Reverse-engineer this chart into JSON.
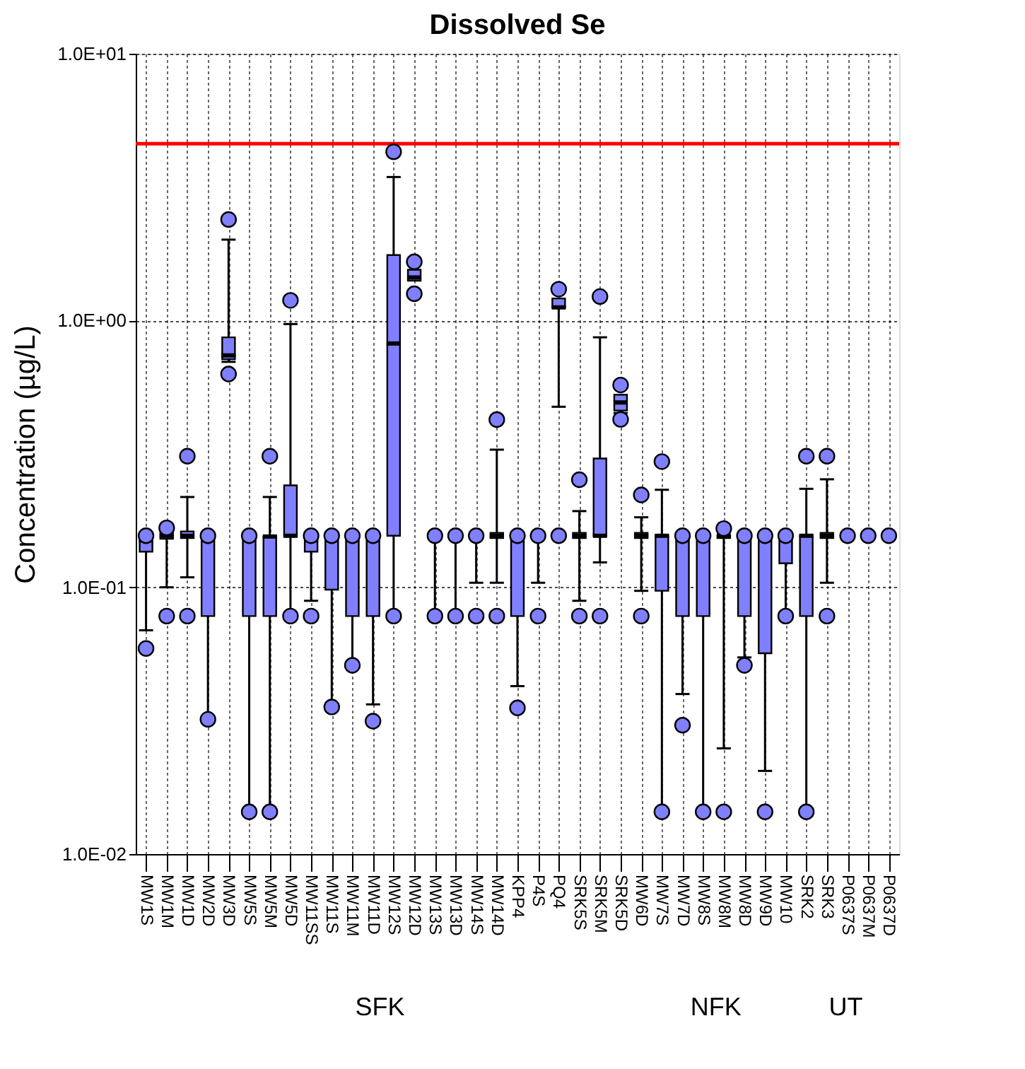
{
  "chart_data": {
    "type": "box",
    "title": "Dissolved Se",
    "ylabel": "Concentration (µg/L)",
    "categories": [
      "MW1S",
      "MW1M",
      "MW1D",
      "MW2D",
      "MW3D",
      "MW5S",
      "MW5M",
      "MW5D",
      "MW11SS",
      "MW11S",
      "MW11M",
      "MW11D",
      "MW12S",
      "MW12D",
      "MW13S",
      "MW13D",
      "MW14S",
      "MW14D",
      "KPP4",
      "P4S",
      "PQ4",
      "SRK5S",
      "SRK5M",
      "SRK5D",
      "MW6D",
      "MW7S",
      "MW7D",
      "MW8S",
      "MW8M",
      "MW8D",
      "MW9D",
      "MW10",
      "SRK2",
      "SRK3",
      "P0637S",
      "P0637M",
      "P0637D"
    ],
    "series": [
      {
        "color": "#8080ff",
        "boxes": [
          {
            "low": 0.069,
            "q1": 0.136,
            "median": 0.15,
            "q3": 0.156,
            "high": 0.156,
            "outliers": [
              0.156,
              0.059
            ]
          },
          {
            "low": 0.1,
            "q1": 0.152,
            "median": 0.156,
            "q3": 0.16,
            "high": 0.16,
            "outliers": [
              0.167,
              0.078
            ]
          },
          {
            "low": 0.109,
            "q1": 0.153,
            "median": 0.156,
            "q3": 0.162,
            "high": 0.218,
            "outliers": [
              0.31,
              0.078
            ]
          },
          {
            "low": 0.032,
            "q1": 0.078,
            "median": 0.156,
            "q3": 0.156,
            "high": 0.156,
            "outliers": [
              0.156,
              0.032
            ]
          },
          {
            "low": 0.7,
            "q1": 0.716,
            "median": 0.74,
            "q3": 0.865,
            "high": 2.01,
            "outliers": [
              2.39,
              0.63
            ]
          },
          {
            "low": 0.0144,
            "q1": 0.078,
            "median": 0.156,
            "q3": 0.156,
            "high": 0.156,
            "outliers": [
              0.156,
              0.0144
            ]
          },
          {
            "low": 0.0144,
            "q1": 0.078,
            "median": 0.155,
            "q3": 0.155,
            "high": 0.218,
            "outliers": [
              0.31,
              0.0144
            ]
          },
          {
            "low": 0.078,
            "q1": 0.156,
            "median": 0.156,
            "q3": 0.241,
            "high": 0.97,
            "outliers": [
              1.19,
              0.078
            ]
          },
          {
            "low": 0.089,
            "q1": 0.136,
            "median": 0.15,
            "q3": 0.156,
            "high": 0.156,
            "outliers": [
              0.156,
              0.078
            ]
          },
          {
            "low": 0.0356,
            "q1": 0.098,
            "median": 0.156,
            "q3": 0.156,
            "high": 0.156,
            "outliers": [
              0.156,
              0.0356
            ]
          },
          {
            "low": 0.051,
            "q1": 0.078,
            "median": 0.156,
            "q3": 0.156,
            "high": 0.156,
            "outliers": [
              0.156,
              0.051
            ]
          },
          {
            "low": 0.0364,
            "q1": 0.078,
            "median": 0.156,
            "q3": 0.156,
            "high": 0.156,
            "outliers": [
              0.156,
              0.0315
            ]
          },
          {
            "low": 0.078,
            "q1": 0.156,
            "median": 0.82,
            "q3": 1.76,
            "high": 3.45,
            "outliers": [
              4.29,
              0.078
            ]
          },
          {
            "low": 1.41,
            "q1": 1.41,
            "median": 1.45,
            "q3": 1.55,
            "high": 1.55,
            "outliers": [
              1.66,
              1.26
            ]
          },
          {
            "low": 0.078,
            "q1": 0.156,
            "median": 0.156,
            "q3": 0.156,
            "high": 0.156,
            "outliers": [
              0.156,
              0.078
            ]
          },
          {
            "low": 0.078,
            "q1": 0.156,
            "median": 0.156,
            "q3": 0.156,
            "high": 0.156,
            "outliers": [
              0.156,
              0.078
            ]
          },
          {
            "low": 0.104,
            "q1": 0.156,
            "median": 0.156,
            "q3": 0.156,
            "high": 0.156,
            "outliers": [
              0.156,
              0.078
            ]
          },
          {
            "low": 0.104,
            "q1": 0.153,
            "median": 0.156,
            "q3": 0.16,
            "high": 0.328,
            "outliers": [
              0.425,
              0.078
            ]
          },
          {
            "low": 0.0426,
            "q1": 0.078,
            "median": 0.156,
            "q3": 0.156,
            "high": 0.156,
            "outliers": [
              0.156,
              0.0353
            ]
          },
          {
            "low": 0.104,
            "q1": 0.156,
            "median": 0.156,
            "q3": 0.156,
            "high": 0.156,
            "outliers": [
              0.156,
              0.078
            ]
          },
          {
            "low": 0.475,
            "q1": 1.12,
            "median": 1.12,
            "q3": 1.21,
            "high": 1.21,
            "outliers": [
              1.31,
              0.156
            ]
          },
          {
            "low": 0.089,
            "q1": 0.153,
            "median": 0.156,
            "q3": 0.16,
            "high": 0.193,
            "outliers": [
              0.253,
              0.078
            ]
          },
          {
            "low": 0.124,
            "q1": 0.156,
            "median": 0.156,
            "q3": 0.304,
            "high": 0.865,
            "outliers": [
              1.23,
              0.078
            ]
          },
          {
            "low": 0.45,
            "q1": 0.46,
            "median": 0.493,
            "q3": 0.527,
            "high": 0.527,
            "outliers": [
              0.573,
              0.426
            ]
          },
          {
            "low": 0.097,
            "q1": 0.153,
            "median": 0.156,
            "q3": 0.16,
            "high": 0.183,
            "outliers": [
              0.222,
              0.078
            ]
          },
          {
            "low": 0.0144,
            "q1": 0.097,
            "median": 0.156,
            "q3": 0.156,
            "high": 0.232,
            "outliers": [
              0.296,
              0.0144
            ]
          },
          {
            "low": 0.0398,
            "q1": 0.078,
            "median": 0.156,
            "q3": 0.156,
            "high": 0.156,
            "outliers": [
              0.156,
              0.0304
            ]
          },
          {
            "low": 0.0144,
            "q1": 0.078,
            "median": 0.156,
            "q3": 0.156,
            "high": 0.156,
            "outliers": [
              0.156,
              0.0144
            ]
          },
          {
            "low": 0.0249,
            "q1": 0.153,
            "median": 0.156,
            "q3": 0.156,
            "high": 0.156,
            "outliers": [
              0.166,
              0.0144
            ]
          },
          {
            "low": 0.0546,
            "q1": 0.078,
            "median": 0.156,
            "q3": 0.156,
            "high": 0.156,
            "outliers": [
              0.156,
              0.051
            ]
          },
          {
            "low": 0.0205,
            "q1": 0.0566,
            "median": 0.156,
            "q3": 0.156,
            "high": 0.156,
            "outliers": [
              0.156,
              0.0144
            ]
          },
          {
            "low": 0.078,
            "q1": 0.123,
            "median": 0.156,
            "q3": 0.156,
            "high": 0.156,
            "outliers": [
              0.156,
              0.078
            ]
          },
          {
            "low": 0.0144,
            "q1": 0.078,
            "median": 0.156,
            "q3": 0.156,
            "high": 0.234,
            "outliers": [
              0.31,
              0.0144
            ]
          },
          {
            "low": 0.104,
            "q1": 0.153,
            "median": 0.156,
            "q3": 0.16,
            "high": 0.254,
            "outliers": [
              0.31,
              0.078
            ]
          },
          {
            "low": 0.156,
            "q1": 0.156,
            "median": 0.156,
            "q3": 0.156,
            "high": 0.156,
            "outliers": [
              0.156
            ]
          },
          {
            "low": 0.156,
            "q1": 0.156,
            "median": 0.156,
            "q3": 0.156,
            "high": 0.156,
            "outliers": [
              0.156
            ]
          },
          {
            "low": 0.156,
            "q1": 0.156,
            "median": 0.156,
            "q3": 0.156,
            "high": 0.156,
            "outliers": [
              0.156
            ]
          }
        ]
      }
    ],
    "log": true,
    "ylim": [
      0.01,
      10
    ],
    "yticks": [
      {
        "value": 0.01,
        "label": "1.0E-02"
      },
      {
        "value": 0.1,
        "label": "1.0E-01"
      },
      {
        "value": 1,
        "label": "1.0E+00"
      },
      {
        "value": 10,
        "label": "1.0E+01"
      }
    ],
    "grid": true,
    "ref_lines": [
      {
        "axis": "y",
        "value": 4.6,
        "color": "#ff0000"
      }
    ],
    "annotations": [
      "SFK",
      "NFK",
      "UT"
    ]
  }
}
